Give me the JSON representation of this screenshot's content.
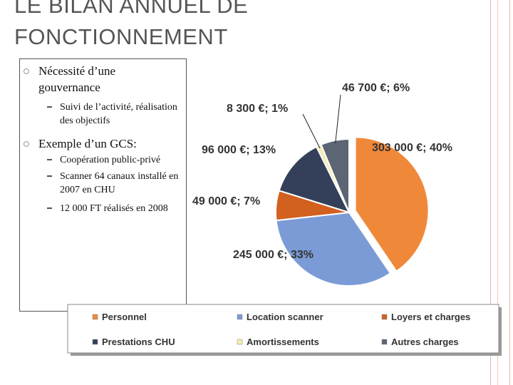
{
  "header": {
    "title": "LE BILAN ANNUEL DE FONCTIONNEMENT"
  },
  "bullets": [
    {
      "text": "Nécessité d’une gouvernance",
      "sub": [
        "Suivi de l’activité, réalisation des objectifs"
      ]
    },
    {
      "text": "Exemple d’un GCS:",
      "sub": [
        "Coopération public-privé",
        "Scanner 64 canaux installé en 2007 en CHU",
        "12 000 FT réalisés en 2008"
      ]
    }
  ],
  "chart_data": {
    "type": "pie",
    "categories": [
      "Personnel",
      "Location scanner",
      "Loyers et charges",
      "Prestations CHU",
      "Amortissements",
      "Autres charges"
    ],
    "values": [
      303000,
      245000,
      49000,
      96000,
      8300,
      46700
    ],
    "value_labels": [
      "303 000 €; 40%",
      "245 000 €; 33%",
      "49 000 €; 7%",
      "96 000 €; 13%",
      "8 300 €; 1%",
      "46 700 €; 6%"
    ],
    "colors": [
      "#f0883a",
      "#7b9bd6",
      "#d2601f",
      "#34405a",
      "#f5ecb0",
      "#5b6573"
    ],
    "legend": "bottom"
  }
}
